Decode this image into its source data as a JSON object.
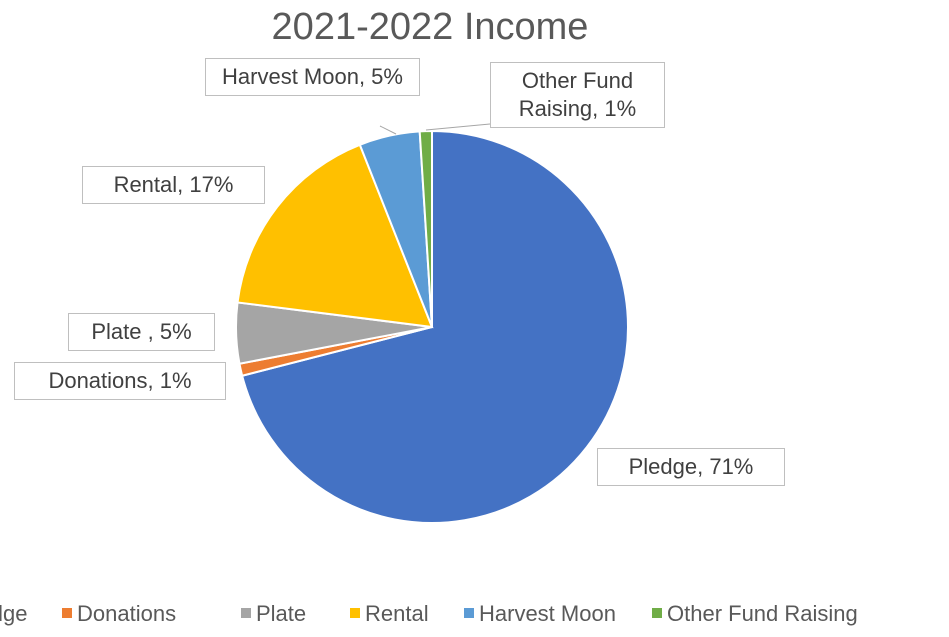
{
  "chart_data": {
    "type": "pie",
    "title": "2021-2022 Income",
    "categories": [
      "Pledge",
      "Donations",
      "Plate",
      "Rental",
      "Harvest Moon",
      "Other Fund Raising"
    ],
    "series": [
      {
        "name": "Income",
        "values": [
          71,
          1,
          5,
          17,
          5,
          1
        ],
        "value_labels": [
          "Pledge, 71%",
          "Donations, 1%",
          "Plate , 5%",
          "Rental, 17%",
          "Harvest Moon, 5%",
          "Other Fund Raising, 1%"
        ]
      }
    ],
    "colors": [
      "#4472c4",
      "#ed7d31",
      "#a5a5a5",
      "#ffc000",
      "#5b9bd5",
      "#70ad47"
    ],
    "legend": "bottom"
  }
}
